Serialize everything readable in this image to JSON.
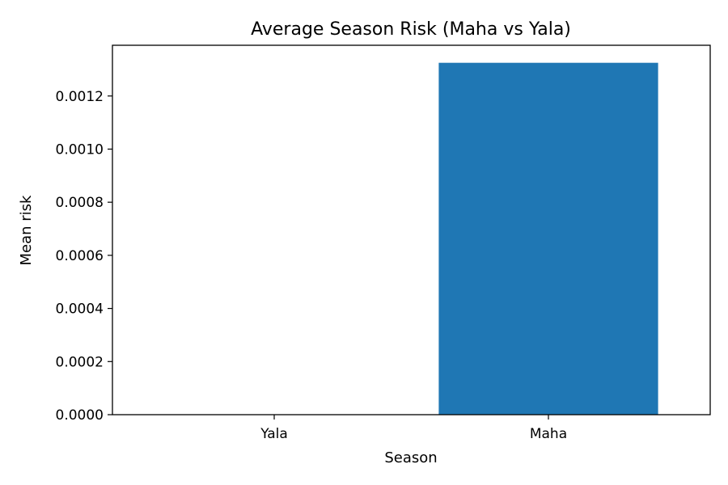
{
  "chart_data": {
    "type": "bar",
    "title": "Average Season Risk (Maha vs Yala)",
    "xlabel": "Season",
    "ylabel": "Mean risk",
    "categories": [
      "Yala",
      "Maha"
    ],
    "values": [
      0.0,
      0.001325
    ],
    "ylim": [
      0,
      0.001391
    ],
    "yticks": [
      "0.0000",
      "0.0002",
      "0.0004",
      "0.0006",
      "0.0008",
      "0.0010",
      "0.0012"
    ],
    "ytick_values": [
      0.0,
      0.0002,
      0.0004,
      0.0006,
      0.0008,
      0.001,
      0.0012
    ],
    "bar_color": "#1f77b4",
    "grid": false,
    "legend": "none"
  }
}
